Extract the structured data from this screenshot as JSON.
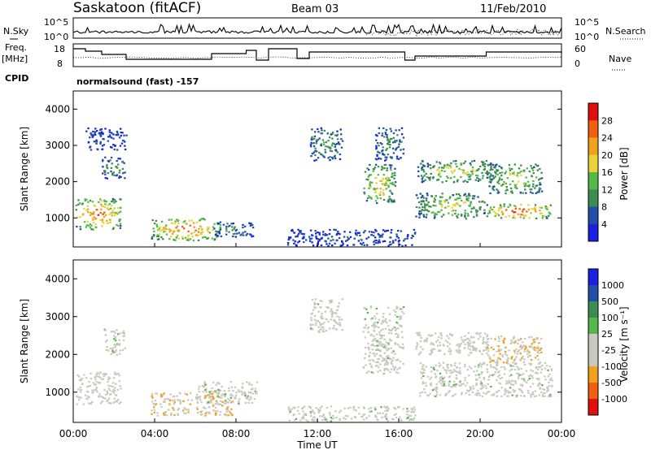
{
  "header": {
    "site": "Saskatoon (fitACF)",
    "beam": "Beam 03",
    "date": "11/Feb/2010"
  },
  "top_panels": {
    "nsky_label": "N.Sky",
    "nsky_ticks": [
      "10^5",
      "10^0"
    ],
    "nsearch_label": "N.Search",
    "freq_label_1": "Freq.",
    "freq_label_2": "[MHz]",
    "freq_ticks": [
      "18",
      "8"
    ],
    "nave_label": "Nave",
    "nave_ticks": [
      "60",
      "0"
    ],
    "cpid_label": "CPID",
    "cpid_text": "normalsound (fast) -157"
  },
  "colors": {
    "power": [
      "#1a20e0",
      "#1f4fa8",
      "#3c8c52",
      "#57b84a",
      "#e8d43a",
      "#f0a21e",
      "#f06010",
      "#e01010"
    ],
    "velocity": [
      "#e01010",
      "#f06010",
      "#f0a21e",
      "#c9c9c0",
      "#c9c9c0",
      "#57b84a",
      "#3c8c52",
      "#1f4fa8",
      "#1a20e0"
    ],
    "ground": "#c4c4bc"
  },
  "chart_data": [
    {
      "type": "heatmap",
      "panel": "power",
      "ylabel": "Slant Range [km]",
      "ylim": [
        200,
        4500
      ],
      "yticks": [
        "1000",
        "2000",
        "3000",
        "4000"
      ],
      "xlim": [
        0,
        24
      ],
      "colorbar_label": "Power [dB]",
      "colorbar_ticks": [
        "4",
        "8",
        "12",
        "16",
        "20",
        "24",
        "28"
      ],
      "color_range": [
        0,
        32
      ],
      "regions": [
        {
          "t0": 0.1,
          "t1": 2.3,
          "r0": 700,
          "r1": 1550,
          "value": 26
        },
        {
          "t0": 1.4,
          "t1": 2.5,
          "r0": 2100,
          "r1": 2700,
          "value": 12
        },
        {
          "t0": 0.6,
          "t1": 2.6,
          "r0": 2900,
          "r1": 3500,
          "value": 6
        },
        {
          "t0": 3.8,
          "t1": 7.2,
          "r0": 400,
          "r1": 1000,
          "value": 26
        },
        {
          "t0": 6.8,
          "t1": 8.8,
          "r0": 500,
          "r1": 900,
          "value": 10
        },
        {
          "t0": 10.5,
          "t1": 16.8,
          "r0": 250,
          "r1": 700,
          "value": 6
        },
        {
          "t0": 11.6,
          "t1": 13.2,
          "r0": 2600,
          "r1": 3500,
          "value": 12
        },
        {
          "t0": 14.2,
          "t1": 15.8,
          "r0": 1400,
          "r1": 2500,
          "value": 20
        },
        {
          "t0": 14.8,
          "t1": 16.2,
          "r0": 2600,
          "r1": 3500,
          "value": 10
        },
        {
          "t0": 16.8,
          "t1": 20.2,
          "r0": 1000,
          "r1": 1700,
          "value": 18
        },
        {
          "t0": 16.9,
          "t1": 20.6,
          "r0": 2000,
          "r1": 2600,
          "value": 18
        },
        {
          "t0": 20.3,
          "t1": 23.5,
          "r0": 1000,
          "r1": 1400,
          "value": 28
        },
        {
          "t0": 20.3,
          "t1": 23.0,
          "r0": 1700,
          "r1": 2500,
          "value": 18
        }
      ]
    },
    {
      "type": "heatmap",
      "panel": "velocity",
      "ylabel": "Slant Range [km]",
      "ylim": [
        200,
        4500
      ],
      "yticks": [
        "1000",
        "2000",
        "3000",
        "4000"
      ],
      "xlim": [
        0,
        24
      ],
      "xlabel": "Time UT",
      "xticks": [
        "00:00",
        "04:00",
        "08:00",
        "12:00",
        "16:00",
        "20:00",
        "00:00"
      ],
      "colorbar_label": "Velocity [m s⁻¹]",
      "colorbar_ticks": [
        "1000",
        "500",
        "100",
        "25",
        "-25",
        "-100",
        "-500",
        "-1000"
      ],
      "color_range": [
        -1000,
        1000
      ],
      "regions": [
        {
          "t0": 0.1,
          "t1": 2.3,
          "r0": 700,
          "r1": 1550,
          "value": -200
        },
        {
          "t0": 1.5,
          "t1": 2.5,
          "r0": 2000,
          "r1": 2700,
          "value": 0
        },
        {
          "t0": 3.8,
          "t1": 7.8,
          "r0": 400,
          "r1": 1000,
          "value": -300
        },
        {
          "t0": 6.0,
          "t1": 9.0,
          "r0": 700,
          "r1": 1300,
          "value": 0
        },
        {
          "t0": 10.5,
          "t1": 16.8,
          "r0": 250,
          "r1": 650,
          "value": 0
        },
        {
          "t0": 11.6,
          "t1": 13.2,
          "r0": 2600,
          "r1": 3500,
          "value": 0
        },
        {
          "t0": 14.2,
          "t1": 16.2,
          "r0": 1500,
          "r1": 3300,
          "value": 0
        },
        {
          "t0": 16.8,
          "t1": 20.4,
          "r0": 2000,
          "r1": 2600,
          "value": -150
        },
        {
          "t0": 17.0,
          "t1": 23.5,
          "r0": 900,
          "r1": 1800,
          "value": 0
        },
        {
          "t0": 20.3,
          "t1": 23.0,
          "r0": 1800,
          "r1": 2500,
          "value": -300
        }
      ]
    }
  ]
}
